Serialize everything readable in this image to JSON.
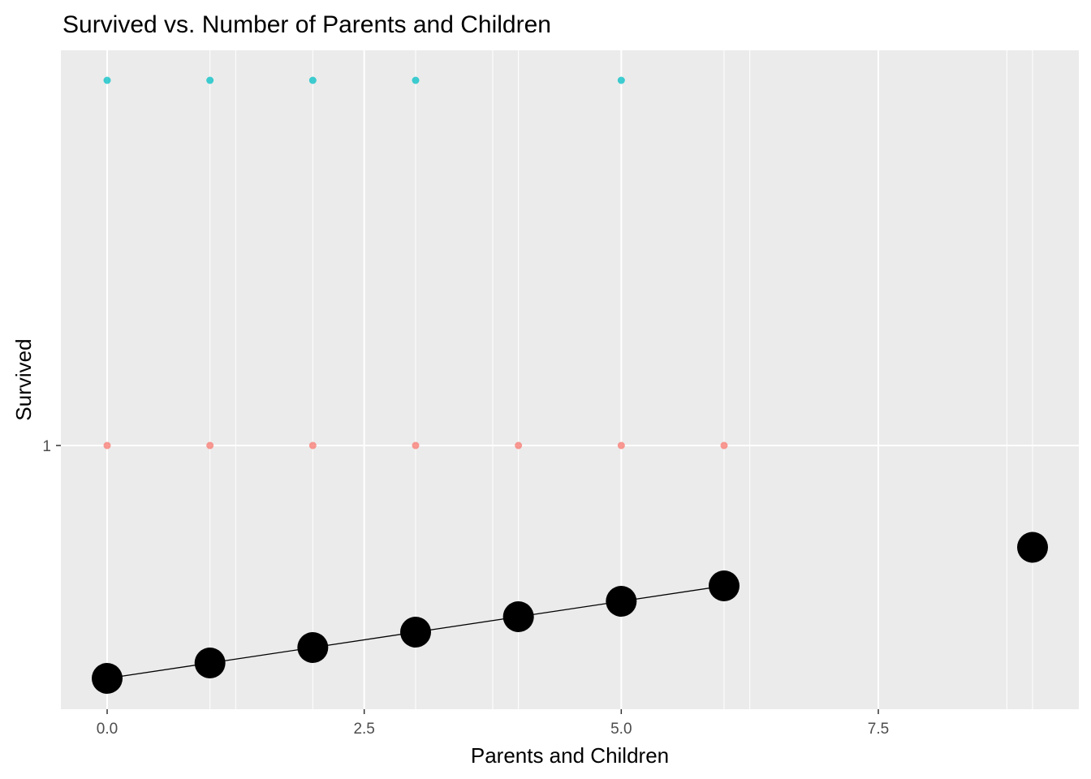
{
  "chart_data": {
    "type": "scatter",
    "title": "Survived vs. Number of Parents and Children",
    "xlabel": "Parents and Children",
    "ylabel": "Survived",
    "xlim": [
      -0.45,
      9.45
    ],
    "x_ticks": [
      0.0,
      2.5,
      5.0,
      7.5
    ],
    "x_tick_labels": [
      "0.0",
      "2.5",
      "5.0",
      "7.5"
    ],
    "y_tick_labels": [
      "1"
    ],
    "grid": true,
    "legend": "none",
    "series": [
      {
        "mark": "small-point",
        "level": "top",
        "color": "#00BFC4",
        "x": [
          0,
          1,
          2,
          3,
          5
        ]
      },
      {
        "mark": "small-point",
        "level": "1",
        "color": "#F8766D",
        "x": [
          0,
          1,
          2,
          3,
          4,
          5,
          6
        ]
      },
      {
        "mark": "large-point-line",
        "color": "#000000",
        "x": [
          0,
          1,
          2,
          3,
          4,
          5,
          6,
          9
        ],
        "y": [
          0.34,
          0.38,
          0.42,
          0.46,
          0.5,
          0.54,
          0.58,
          0.68
        ]
      }
    ]
  }
}
